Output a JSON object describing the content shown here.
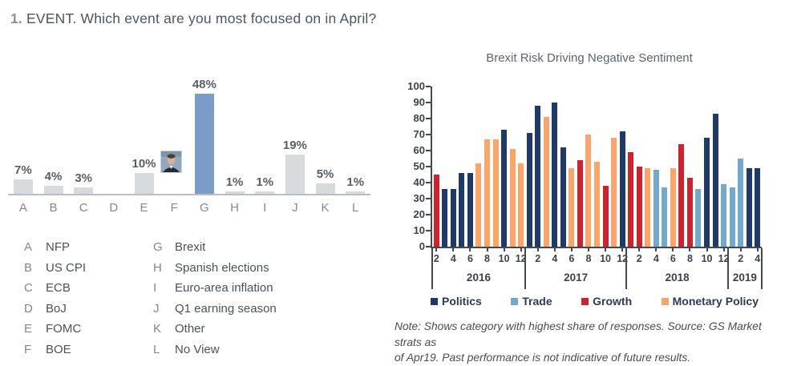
{
  "chart_data": [
    {
      "type": "bar",
      "title_number": "1.",
      "title": "EVENT. Which event are you most focused on in April?",
      "categories": [
        "A",
        "B",
        "C",
        "D",
        "E",
        "F",
        "G",
        "H",
        "I",
        "J",
        "K",
        "L"
      ],
      "values": [
        7,
        4,
        3,
        0,
        10,
        0,
        48,
        1,
        1,
        19,
        5,
        1
      ],
      "value_labels": [
        "7%",
        "4%",
        "3%",
        "",
        "10%",
        "",
        "48%",
        "1%",
        "1%",
        "19%",
        "5%",
        "1%"
      ],
      "unit": "%",
      "bar_color": "#d8dbde",
      "highlight_index": 6,
      "highlight_color": "#7b9cc7",
      "photo_over": "F",
      "photo_description": "small portrait photo of a central banker above column F",
      "key": [
        {
          "letter": "A",
          "label": "NFP"
        },
        {
          "letter": "B",
          "label": "US CPI"
        },
        {
          "letter": "C",
          "label": "ECB"
        },
        {
          "letter": "D",
          "label": "BoJ"
        },
        {
          "letter": "E",
          "label": "FOMC"
        },
        {
          "letter": "F",
          "label": "BOE"
        },
        {
          "letter": "G",
          "label": "Brexit"
        },
        {
          "letter": "H",
          "label": "Spanish elections"
        },
        {
          "letter": "I",
          "label": "Euro-area inflation"
        },
        {
          "letter": "J",
          "label": "Q1 earning season"
        },
        {
          "letter": "K",
          "label": "Other"
        },
        {
          "letter": "L",
          "label": "No View"
        }
      ]
    },
    {
      "type": "bar",
      "title": "Brexit Risk Driving Negative Sentiment",
      "ylim": [
        0,
        100
      ],
      "y_ticks": [
        100,
        90,
        80,
        70,
        60,
        50,
        40,
        30,
        20,
        10,
        0
      ],
      "xlabel": "",
      "ylabel": "",
      "legend_position": "bottom",
      "legend": [
        "Politics",
        "Trade",
        "Growth",
        "Monetary Policy"
      ],
      "category_colors": {
        "Politics": "#1f3a66",
        "Trade": "#74a9cc",
        "Growth": "#c9242f",
        "Monetary Policy": "#fba56b"
      },
      "series_by_year": [
        {
          "year": "2016",
          "first_month": 2,
          "labeled_months": [
            2,
            4,
            6,
            8,
            10,
            12
          ],
          "values": [
            45,
            36,
            36,
            46,
            46,
            52,
            67,
            67,
            73,
            61,
            52
          ],
          "categories": [
            "Growth",
            "Politics",
            "Politics",
            "Politics",
            "Politics",
            "Monetary Policy",
            "Monetary Policy",
            "Monetary Policy",
            "Politics",
            "Monetary Policy",
            "Monetary Policy"
          ]
        },
        {
          "year": "2017",
          "first_month": 1,
          "labeled_months": [
            2,
            4,
            6,
            8,
            10,
            12
          ],
          "values": [
            71,
            88,
            81,
            90,
            62,
            49,
            54,
            70,
            53,
            38,
            68,
            72
          ],
          "categories": [
            "Politics",
            "Politics",
            "Monetary Policy",
            "Politics",
            "Politics",
            "Monetary Policy",
            "Growth",
            "Monetary Policy",
            "Monetary Policy",
            "Growth",
            "Monetary Policy",
            "Politics"
          ]
        },
        {
          "year": "2018",
          "first_month": 1,
          "labeled_months": [
            2,
            4,
            6,
            8,
            10,
            12
          ],
          "values": [
            59,
            50,
            49,
            48,
            37,
            49,
            64,
            43,
            36,
            68,
            83,
            39
          ],
          "categories": [
            "Growth",
            "Growth",
            "Monetary Policy",
            "Trade",
            "Trade",
            "Monetary Policy",
            "Growth",
            "Growth",
            "Trade",
            "Politics",
            "Politics",
            "Trade"
          ]
        },
        {
          "year": "2019",
          "first_month": 1,
          "labeled_months": [
            2,
            4
          ],
          "values": [
            37,
            55,
            49,
            49
          ],
          "categories": [
            "Trade",
            "Trade",
            "Politics",
            "Politics"
          ]
        }
      ],
      "note_line1": "Note: Shows category with highest share of responses. Source: GS Market strats as",
      "note_line2": "of Apr19. Past performance is not indicative of future results."
    }
  ]
}
